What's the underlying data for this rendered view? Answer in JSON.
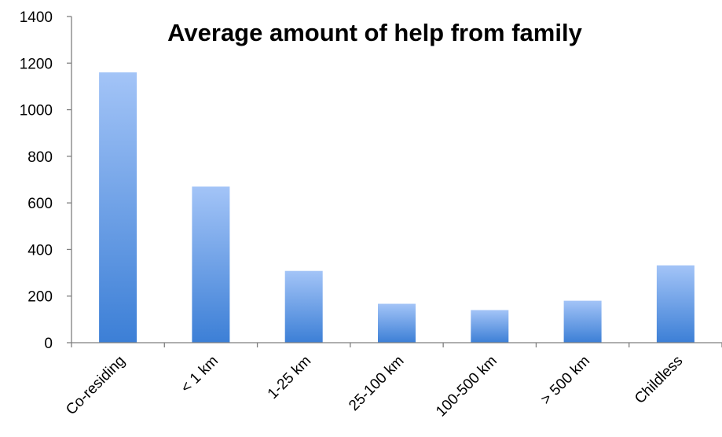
{
  "chart_data": {
    "type": "bar",
    "title": "Average amount of help from family",
    "categories": [
      "Co-residing",
      "< 1 km",
      "1-25 km",
      "25-100 km",
      "100-500 km",
      "> 500 km",
      "Childless"
    ],
    "values": [
      1160,
      670,
      308,
      167,
      140,
      180,
      332
    ],
    "ylim": [
      0,
      1400
    ],
    "yticks": [
      "0",
      "200",
      "400",
      "600",
      "800",
      "1000",
      "1200",
      "1400"
    ],
    "xlabel": "",
    "ylabel": "",
    "grid": false,
    "legend": "none",
    "colors": {
      "bar_top": "#a3c4f7",
      "bar_bottom": "#3c7fd6",
      "axis": "#7f7f7f"
    }
  }
}
